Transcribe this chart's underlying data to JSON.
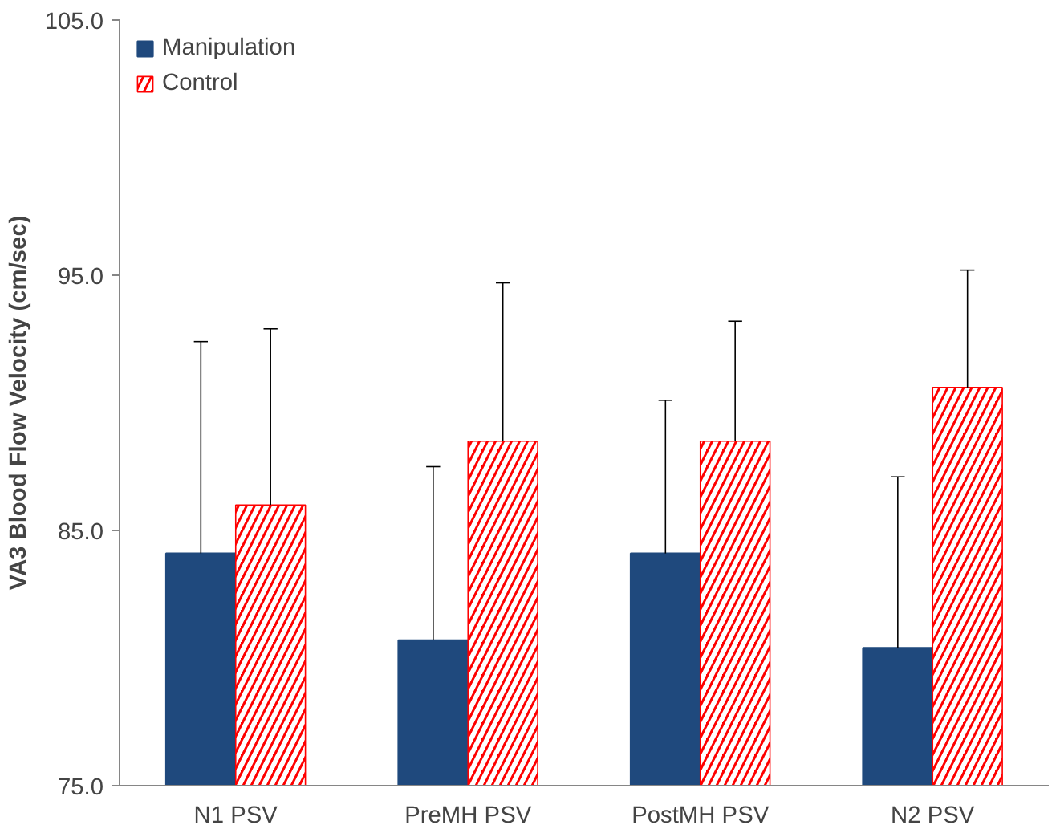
{
  "chart_data": {
    "type": "bar",
    "ylabel": "VA3 Blood Flow Velocity (cm/sec)",
    "categories": [
      "N1 PSV",
      "PreMH PSV",
      "PostMH PSV",
      "N2 PSV"
    ],
    "series": [
      {
        "name": "Manipulation",
        "color": "#1f497d",
        "values": [
          84.1,
          80.7,
          84.1,
          80.4
        ],
        "errors": [
          [
            84.1,
            92.4
          ],
          [
            80.7,
            87.5
          ],
          [
            84.1,
            90.1
          ],
          [
            80.4,
            87.1
          ]
        ]
      },
      {
        "name": "Control",
        "color": "#ff0000",
        "values": [
          86.0,
          88.5,
          88.5,
          90.6
        ],
        "errors": [
          [
            86.0,
            92.9
          ],
          [
            88.5,
            94.7
          ],
          [
            88.5,
            93.2
          ],
          [
            90.6,
            95.2
          ]
        ]
      }
    ],
    "ylim": [
      75,
      105
    ],
    "yticks": [
      {
        "value": 75,
        "label": "75.0"
      },
      {
        "value": 85,
        "label": "85.0"
      },
      {
        "value": 95,
        "label": "95.0"
      },
      {
        "value": 105,
        "label": "105.0"
      }
    ],
    "legend": "top left",
    "grid": false
  }
}
